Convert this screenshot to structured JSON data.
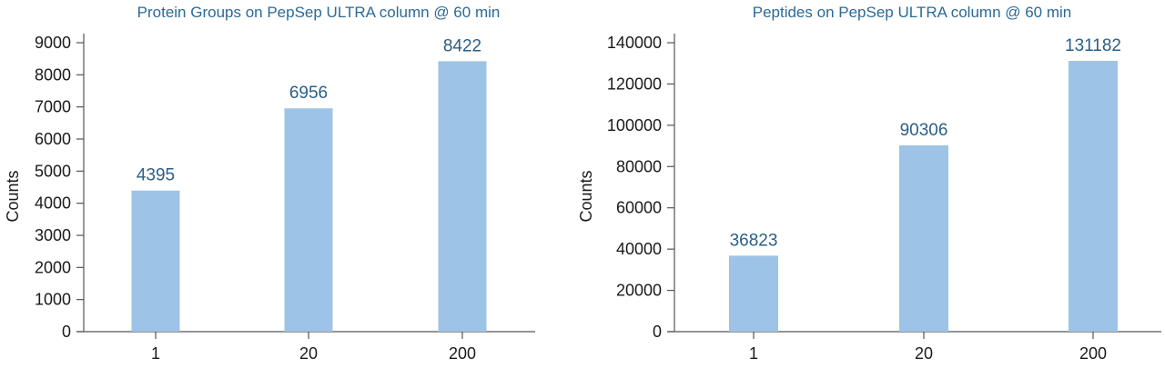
{
  "chart_data": [
    {
      "type": "bar",
      "title": "Protein Groups on PepSep ULTRA column @ 60 min",
      "xlabel": "",
      "ylabel": "Counts",
      "categories": [
        "1",
        "20",
        "200"
      ],
      "values": [
        4395,
        6956,
        8422
      ],
      "data_labels": [
        "4395",
        "6956",
        "8422"
      ],
      "ylim": [
        0,
        9000
      ],
      "yticks": [
        0,
        1000,
        2000,
        3000,
        4000,
        5000,
        6000,
        7000,
        8000,
        9000
      ],
      "grid": false,
      "bar_color": "#9dc3e6",
      "label_color": "#2b5f86"
    },
    {
      "type": "bar",
      "title": "Peptides on PepSep ULTRA column @ 60 min",
      "xlabel": "",
      "ylabel": "Counts",
      "categories": [
        "1",
        "20",
        "200"
      ],
      "values": [
        36823,
        90306,
        131182
      ],
      "data_labels": [
        "36823",
        "90306",
        "131182"
      ],
      "ylim": [
        0,
        140000
      ],
      "yticks": [
        0,
        20000,
        40000,
        60000,
        80000,
        100000,
        120000,
        140000
      ],
      "grid": false,
      "bar_color": "#9dc3e6",
      "label_color": "#2b5f86"
    }
  ]
}
